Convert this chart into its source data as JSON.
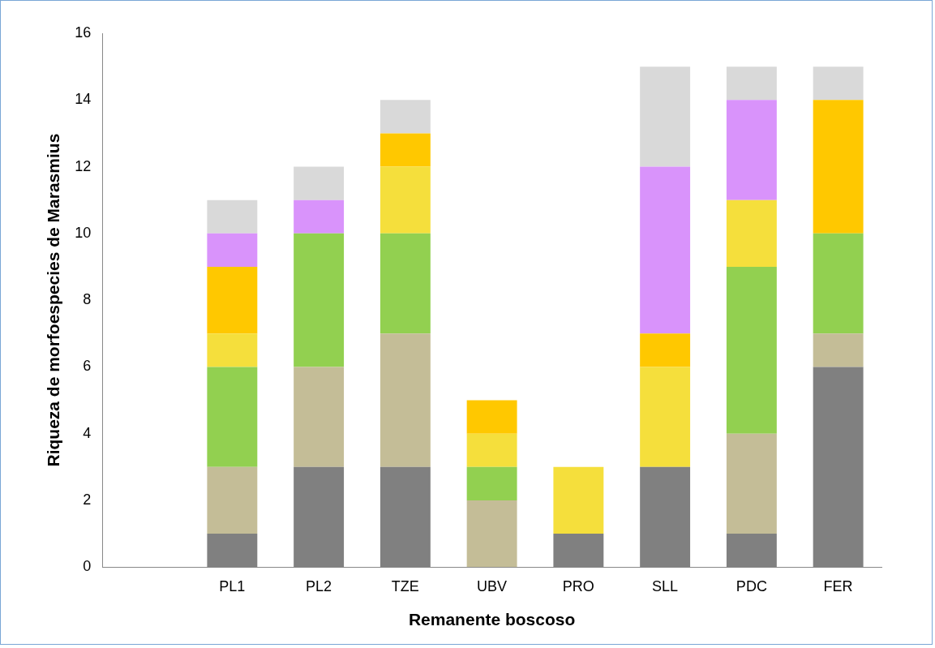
{
  "chart_data": {
    "type": "bar",
    "stacked": true,
    "xlabel": "Remanente boscoso",
    "ylabel": "Riqueza de morfoespecies de Marasmius",
    "categories": [
      null,
      "PL1",
      "PL2",
      "TZE",
      "UBV",
      "PRO",
      "SLL",
      "PDC",
      "FER"
    ],
    "series": [
      {
        "color": "#808080",
        "values": [
          null,
          1,
          3,
          3,
          0,
          1,
          3,
          1,
          6
        ]
      },
      {
        "color": "#c4bd97",
        "values": [
          null,
          2,
          3,
          4,
          2,
          0,
          0,
          3,
          1
        ]
      },
      {
        "color": "#92d050",
        "values": [
          null,
          3,
          4,
          3,
          1,
          0,
          0,
          5,
          3
        ]
      },
      {
        "color": "#f5df3c",
        "values": [
          null,
          1,
          0,
          2,
          1,
          2,
          3,
          2,
          0
        ]
      },
      {
        "color": "#ffc800",
        "values": [
          null,
          2,
          0,
          1,
          1,
          0,
          1,
          0,
          4
        ]
      },
      {
        "color": "#d993fb",
        "values": [
          null,
          1,
          1,
          0,
          0,
          0,
          5,
          3,
          0
        ]
      },
      {
        "color": "#d9d9d9",
        "values": [
          null,
          1,
          1,
          1,
          0,
          0,
          3,
          1,
          1
        ]
      }
    ],
    "ylim": [
      0,
      16
    ],
    "yticks": [
      0,
      2,
      4,
      6,
      8,
      10,
      12,
      14,
      16
    ],
    "grid": false,
    "legend": false
  }
}
